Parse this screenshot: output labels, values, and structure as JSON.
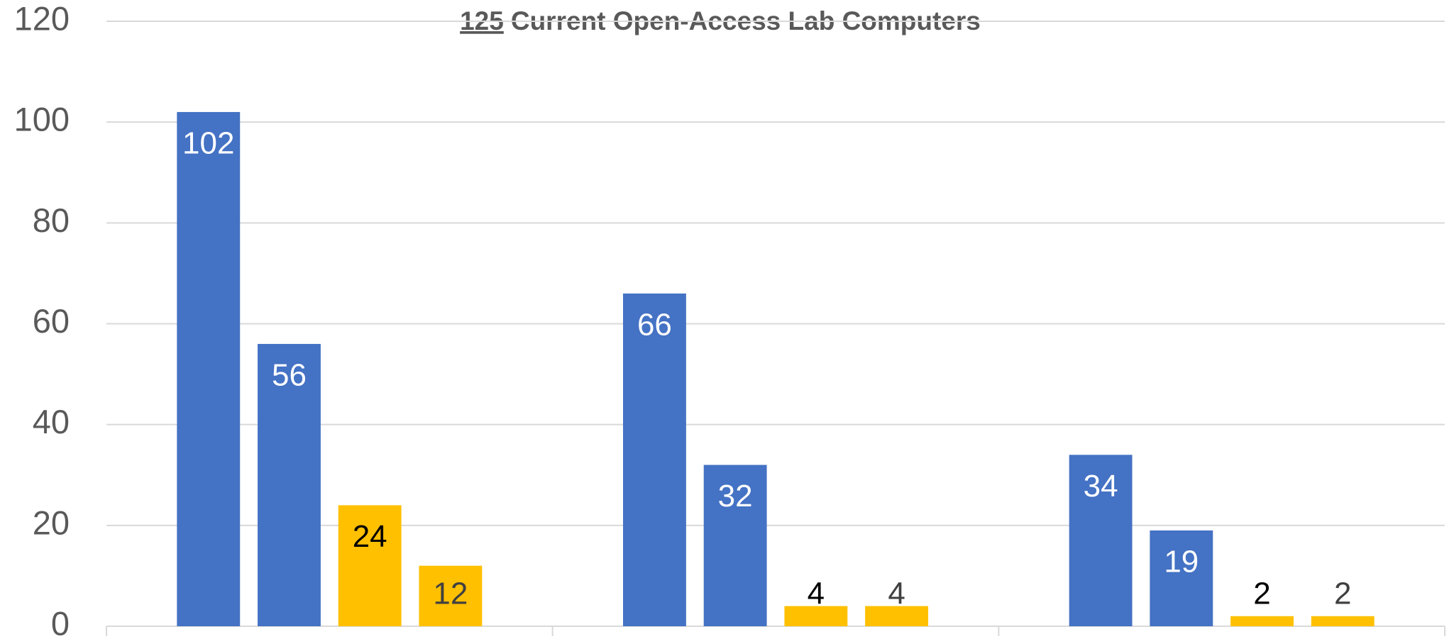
{
  "chart_data": {
    "type": "bar",
    "title": [
      "125",
      "Current Open-Access Lab Computers"
    ],
    "categories": [
      null,
      null,
      null
    ],
    "series": [
      {
        "color": "#4472c4",
        "label_color": "#ffffff",
        "values": [
          102,
          66,
          34
        ]
      },
      {
        "color": "#4472c4",
        "label_color": "#ffffff",
        "values": [
          56,
          32,
          19
        ]
      },
      {
        "color": "#ffc000",
        "label_color": "#000000",
        "values": [
          24,
          4,
          2
        ]
      },
      {
        "color": "#ffc000",
        "label_color": "#404040",
        "values": [
          12,
          4,
          2
        ]
      }
    ],
    "ylim": [
      0,
      120
    ],
    "yticks": [
      0,
      20,
      40,
      60,
      80,
      100,
      120
    ],
    "grid": true
  }
}
